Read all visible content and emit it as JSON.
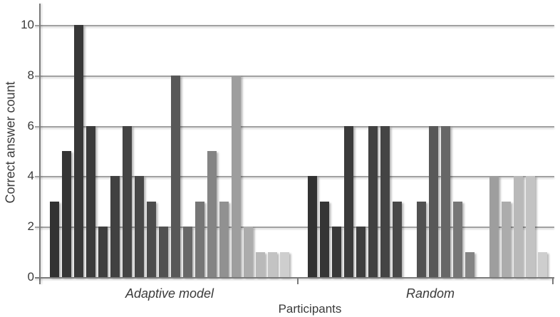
{
  "chart_data": {
    "type": "bar",
    "title": "",
    "xlabel": "Participants",
    "ylabel": "Correct answer count",
    "ylim": [
      0,
      11
    ],
    "yticks": [
      0,
      2,
      4,
      6,
      8,
      10
    ],
    "grid": true,
    "legend": "none",
    "note": "one bar per participant; zero values appear as empty slots",
    "groups": [
      {
        "label": "Adaptive model",
        "values": [
          3,
          5,
          10,
          6,
          2,
          4,
          6,
          4,
          3,
          2,
          8,
          2,
          3,
          5,
          3,
          8,
          2,
          1,
          1,
          1
        ]
      },
      {
        "label": "Random",
        "values": [
          4,
          3,
          2,
          6,
          2,
          6,
          6,
          3,
          0,
          3,
          6,
          6,
          3,
          1,
          0,
          4,
          3,
          4,
          4,
          1
        ]
      }
    ],
    "bar_colors_by_index": [
      "#323232",
      "#353535",
      "#383838",
      "#3b3b3b",
      "#3e3e3e",
      "#414141",
      "#444444",
      "#484848",
      "#4c4c4c",
      "#515151",
      "#585858",
      "#676767",
      "#767676",
      "#848484",
      "#919191",
      "#9e9e9e",
      "#acacac",
      "#b9b9b9",
      "#c3c3c3",
      "#cecece"
    ],
    "colors": {
      "gridline": "#a1a1a1",
      "axis": "#7a7a7a",
      "text": "#3b3b3b",
      "background": "#ffffff"
    }
  }
}
